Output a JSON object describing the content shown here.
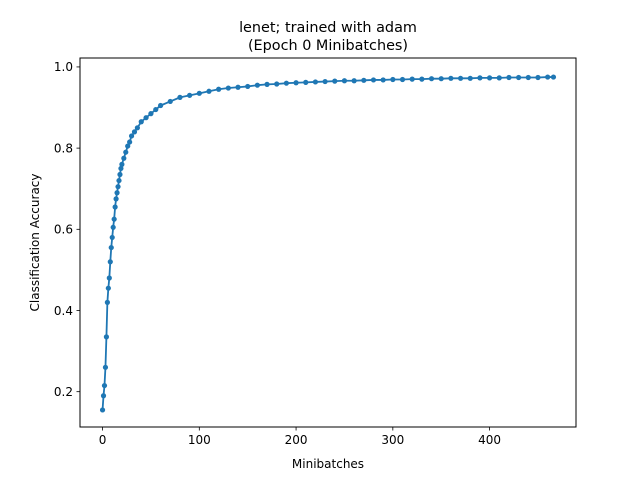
{
  "chart_data": {
    "type": "line",
    "title": "lenet; trained with adam",
    "subtitle": "(Epoch 0 Minibatches)",
    "xlabel": "Minibatches",
    "ylabel": "Classification Accuracy",
    "xlim": [
      -23.3,
      489.3
    ],
    "ylim": [
      0.113,
      1.022
    ],
    "xticks": [
      0,
      100,
      200,
      300,
      400
    ],
    "xtick_labels": [
      "0",
      "100",
      "200",
      "300",
      "400"
    ],
    "yticks": [
      0.2,
      0.4,
      0.6,
      0.8,
      1.0
    ],
    "ytick_labels": [
      "0.2",
      "0.4",
      "0.6",
      "0.8",
      "1.0"
    ],
    "grid": false,
    "series": [
      {
        "color": "#1f77b4",
        "marker": "circle",
        "x": [
          0,
          1,
          2,
          3,
          4,
          5,
          6,
          7,
          8,
          9,
          10,
          11,
          12,
          13,
          14,
          15,
          16,
          17,
          18,
          19,
          20,
          22,
          24,
          26,
          28,
          30,
          33,
          36,
          40,
          45,
          50,
          55,
          60,
          70,
          80,
          90,
          100,
          110,
          120,
          130,
          140,
          150,
          160,
          170,
          180,
          190,
          200,
          210,
          220,
          230,
          240,
          250,
          260,
          270,
          280,
          290,
          300,
          310,
          320,
          330,
          340,
          350,
          360,
          370,
          380,
          390,
          400,
          410,
          420,
          430,
          440,
          450,
          460,
          466
        ],
        "y": [
          0.155,
          0.19,
          0.215,
          0.26,
          0.335,
          0.42,
          0.455,
          0.48,
          0.52,
          0.555,
          0.58,
          0.605,
          0.625,
          0.655,
          0.675,
          0.69,
          0.705,
          0.72,
          0.735,
          0.75,
          0.76,
          0.775,
          0.79,
          0.805,
          0.815,
          0.83,
          0.84,
          0.85,
          0.865,
          0.875,
          0.885,
          0.895,
          0.905,
          0.915,
          0.925,
          0.93,
          0.935,
          0.94,
          0.945,
          0.948,
          0.95,
          0.952,
          0.955,
          0.957,
          0.958,
          0.96,
          0.961,
          0.962,
          0.963,
          0.964,
          0.965,
          0.966,
          0.966,
          0.967,
          0.968,
          0.968,
          0.969,
          0.969,
          0.97,
          0.97,
          0.971,
          0.971,
          0.972,
          0.972,
          0.972,
          0.973,
          0.973,
          0.973,
          0.974,
          0.974,
          0.974,
          0.974,
          0.975,
          0.975
        ]
      }
    ]
  }
}
